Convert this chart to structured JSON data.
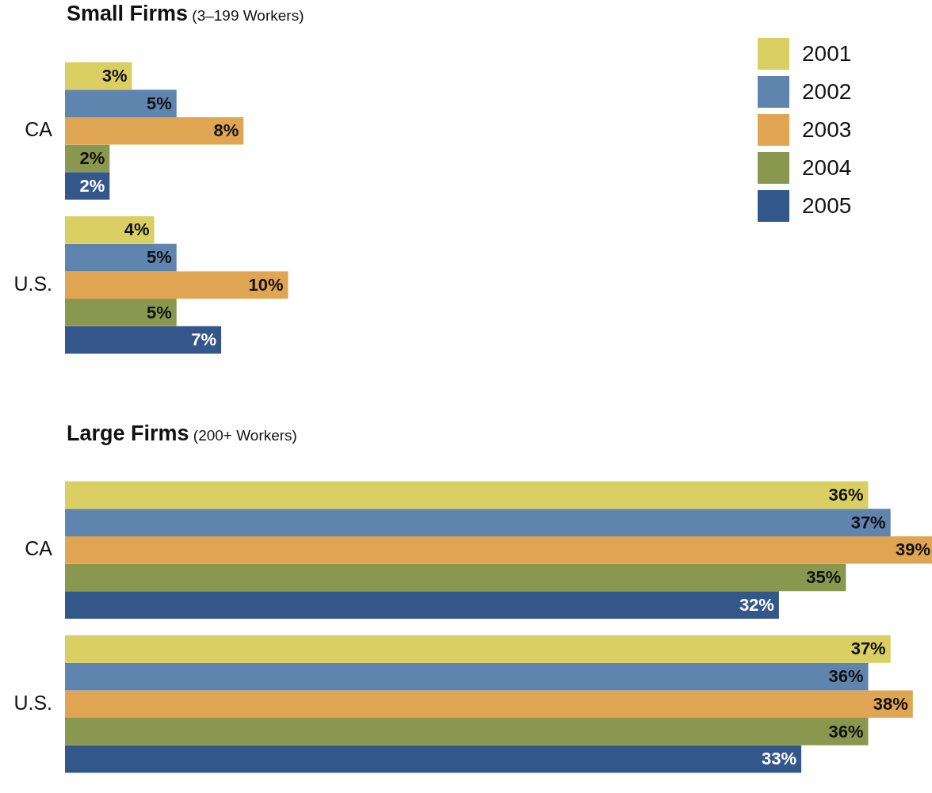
{
  "chart_data": [
    {
      "type": "bar",
      "title": "Small Firms",
      "subtitle": "(3–199 Workers)",
      "orientation": "horizontal",
      "categories": [
        "CA",
        "U.S."
      ],
      "tick_labels": "y",
      "legend": "top right",
      "series": [
        {
          "name": "2001",
          "color": "#d9cf62",
          "values": [
            3,
            4
          ],
          "value_labels": [
            "3%",
            "4%"
          ]
        },
        {
          "name": "2002",
          "color": "#5f84ae",
          "values": [
            5,
            5
          ],
          "value_labels": [
            "5%",
            "5%"
          ]
        },
        {
          "name": "2003",
          "color": "#e0a552",
          "values": [
            8,
            10
          ],
          "value_labels": [
            "8%",
            "10%"
          ]
        },
        {
          "name": "2004",
          "color": "#8a974f",
          "values": [
            2,
            5
          ],
          "value_labels": [
            "2%",
            "5%"
          ]
        },
        {
          "name": "2005",
          "color": "#34578b",
          "values": [
            2,
            7
          ],
          "value_labels": [
            "2%",
            "7%"
          ]
        }
      ]
    },
    {
      "type": "bar",
      "title": "Large Firms",
      "subtitle": "(200+ Workers)",
      "orientation": "horizontal",
      "categories": [
        "CA",
        "U.S."
      ],
      "tick_labels": "y",
      "series": [
        {
          "name": "2001",
          "color": "#d9cf62",
          "values": [
            36,
            37
          ],
          "value_labels": [
            "36%",
            "37%"
          ]
        },
        {
          "name": "2002",
          "color": "#5f84ae",
          "values": [
            37,
            36
          ],
          "value_labels": [
            "37%",
            "36%"
          ]
        },
        {
          "name": "2003",
          "color": "#e0a552",
          "values": [
            39,
            38
          ],
          "value_labels": [
            "39%",
            "38%"
          ]
        },
        {
          "name": "2004",
          "color": "#8a974f",
          "values": [
            35,
            36
          ],
          "value_labels": [
            "35%",
            "36%"
          ]
        },
        {
          "name": "2005",
          "color": "#34578b",
          "values": [
            32,
            33
          ],
          "value_labels": [
            "32%",
            "33%"
          ]
        }
      ]
    }
  ]
}
